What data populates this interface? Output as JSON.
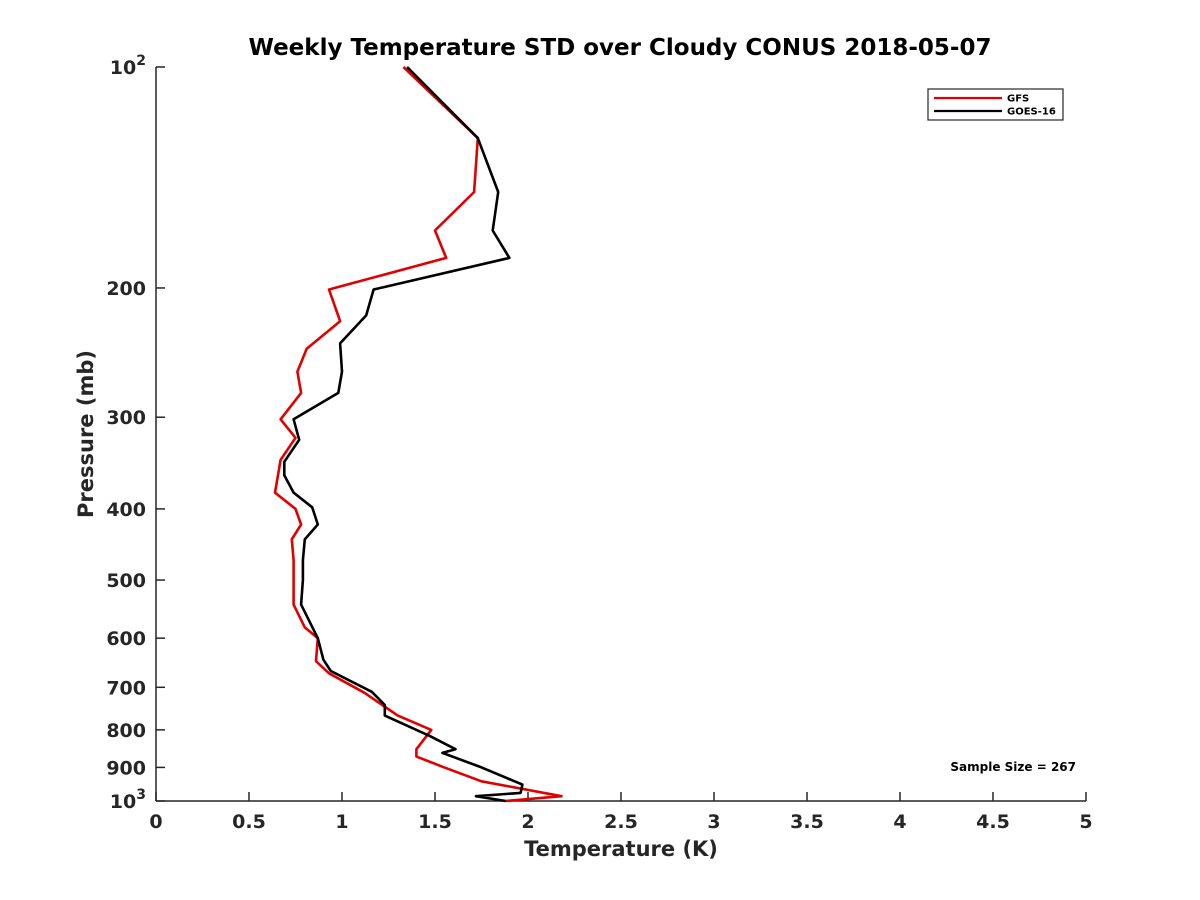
{
  "chart_data": {
    "type": "line",
    "title": "Weekly Temperature STD over Cloudy CONUS 2018-05-07",
    "xlabel": "Temperature (K)",
    "ylabel": "Pressure (mb)",
    "xlim": [
      0,
      5
    ],
    "ylim": [
      100,
      1000
    ],
    "y_scale": "log",
    "y_reversed": true,
    "grid": false,
    "legend_position": "top-right",
    "x_ticks": [
      {
        "value": 0,
        "label": "0"
      },
      {
        "value": 0.5,
        "label": "0.5"
      },
      {
        "value": 1,
        "label": "1"
      },
      {
        "value": 1.5,
        "label": "1.5"
      },
      {
        "value": 2,
        "label": "2"
      },
      {
        "value": 2.5,
        "label": "2.5"
      },
      {
        "value": 3,
        "label": "3"
      },
      {
        "value": 3.5,
        "label": "3.5"
      },
      {
        "value": 4,
        "label": "4"
      },
      {
        "value": 4.5,
        "label": "4.5"
      },
      {
        "value": 5,
        "label": "5"
      }
    ],
    "y_ticks": [
      {
        "value": 100,
        "base": "10",
        "exp": "2"
      },
      {
        "value": 200,
        "base": "200",
        "exp": ""
      },
      {
        "value": 300,
        "base": "300",
        "exp": ""
      },
      {
        "value": 400,
        "base": "400",
        "exp": ""
      },
      {
        "value": 500,
        "base": "500",
        "exp": ""
      },
      {
        "value": 600,
        "base": "600",
        "exp": ""
      },
      {
        "value": 700,
        "base": "700",
        "exp": ""
      },
      {
        "value": 800,
        "base": "800",
        "exp": ""
      },
      {
        "value": 900,
        "base": "900",
        "exp": ""
      },
      {
        "value": 1000,
        "base": "10",
        "exp": "3"
      }
    ],
    "annotation": "Sample Size = 267",
    "series": [
      {
        "name": "GFS",
        "color": "#e00000",
        "points": [
          [
            1.33,
            100
          ],
          [
            1.73,
            125
          ],
          [
            1.71,
            148
          ],
          [
            1.5,
            167
          ],
          [
            1.56,
            182
          ],
          [
            0.93,
            201
          ],
          [
            0.99,
            222
          ],
          [
            0.81,
            242
          ],
          [
            0.76,
            260
          ],
          [
            0.78,
            278
          ],
          [
            0.67,
            302
          ],
          [
            0.75,
            320
          ],
          [
            0.67,
            343
          ],
          [
            0.64,
            380
          ],
          [
            0.75,
            400
          ],
          [
            0.78,
            420
          ],
          [
            0.73,
            440
          ],
          [
            0.74,
            470
          ],
          [
            0.74,
            500
          ],
          [
            0.74,
            540
          ],
          [
            0.8,
            580
          ],
          [
            0.87,
            600
          ],
          [
            0.86,
            645
          ],
          [
            0.93,
            670
          ],
          [
            1.12,
            712
          ],
          [
            1.3,
            765
          ],
          [
            1.48,
            800
          ],
          [
            1.4,
            850
          ],
          [
            1.4,
            870
          ],
          [
            1.55,
            900
          ],
          [
            1.75,
            940
          ],
          [
            2.18,
            985
          ],
          [
            1.88,
            1000
          ]
        ]
      },
      {
        "name": "GOES-16",
        "color": "#000000",
        "points": [
          [
            1.35,
            100
          ],
          [
            1.73,
            125
          ],
          [
            1.84,
            148
          ],
          [
            1.81,
            167
          ],
          [
            1.9,
            182
          ],
          [
            1.17,
            201
          ],
          [
            1.13,
            218
          ],
          [
            0.99,
            238
          ],
          [
            1.0,
            260
          ],
          [
            0.98,
            278
          ],
          [
            0.74,
            302
          ],
          [
            0.77,
            322
          ],
          [
            0.69,
            345
          ],
          [
            0.69,
            360
          ],
          [
            0.74,
            380
          ],
          [
            0.84,
            398
          ],
          [
            0.87,
            420
          ],
          [
            0.8,
            440
          ],
          [
            0.79,
            470
          ],
          [
            0.79,
            500
          ],
          [
            0.78,
            540
          ],
          [
            0.87,
            600
          ],
          [
            0.9,
            642
          ],
          [
            0.94,
            665
          ],
          [
            1.16,
            710
          ],
          [
            1.23,
            740
          ],
          [
            1.23,
            765
          ],
          [
            1.47,
            815
          ],
          [
            1.61,
            850
          ],
          [
            1.54,
            860
          ],
          [
            1.75,
            900
          ],
          [
            1.97,
            950
          ],
          [
            1.96,
            975
          ],
          [
            1.72,
            985
          ],
          [
            1.88,
            1000
          ]
        ]
      }
    ]
  }
}
